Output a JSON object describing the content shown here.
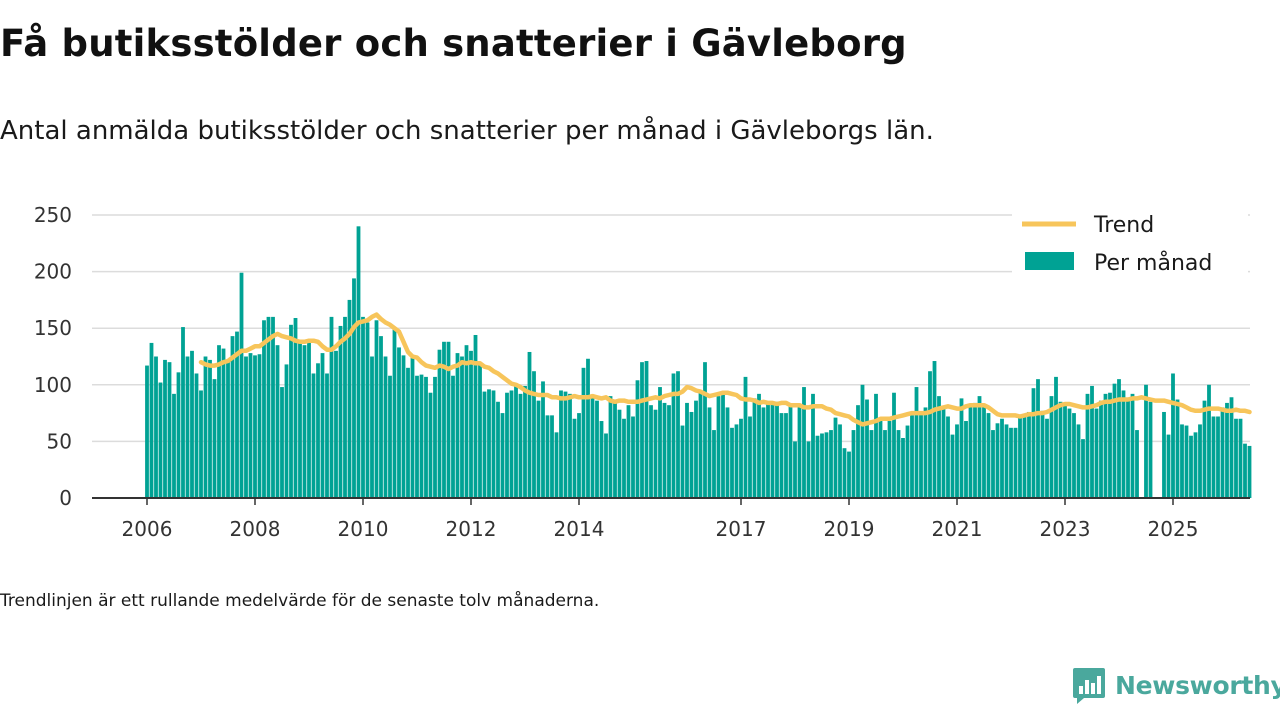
{
  "title": "Få butiksstölder och snatterier i Gävleborg",
  "subtitle": "Antal anmälda butiksstölder och snatterier per månad i Gävleborgs län.",
  "note": "Trendlinjen är ett rullande medelvärde för de senaste tolv månaderna.",
  "brand": {
    "name": "Newsworthy",
    "icon": "newsworthy-logo-icon"
  },
  "colors": {
    "bars": "#00a294",
    "trend": "#f7c55b",
    "grid": "#dcdcdc",
    "axis": "#333333",
    "brand": "#4aa89d"
  },
  "chart_data": {
    "type": "bar",
    "xaxis_tick_labels": [
      "2006",
      "2008",
      "2010",
      "2012",
      "2014",
      "2017",
      "2019",
      "2021",
      "2023",
      "2025"
    ],
    "yaxis_tick_labels": [
      "0",
      "50",
      "100",
      "150",
      "200",
      "250"
    ],
    "ylim": [
      0,
      250
    ],
    "grid": true,
    "legend_position": "top-right",
    "start_month": "2006-01",
    "series": [
      {
        "name": "Per månad",
        "type": "bar",
        "values": [
          117,
          137,
          125,
          102,
          122,
          120,
          92,
          111,
          151,
          125,
          130,
          110,
          95,
          125,
          122,
          105,
          135,
          132,
          122,
          143,
          147,
          199,
          125,
          128,
          126,
          127,
          157,
          160,
          160,
          135,
          98,
          118,
          153,
          159,
          140,
          135,
          138,
          110,
          119,
          128,
          110,
          160,
          130,
          152,
          160,
          175,
          194,
          240,
          160,
          155,
          125,
          157,
          143,
          125,
          108,
          150,
          133,
          126,
          115,
          124,
          108,
          109,
          107,
          93,
          107,
          131,
          138,
          138,
          108,
          128,
          125,
          135,
          130,
          144,
          118,
          94,
          96,
          95,
          85,
          75,
          93,
          95,
          101,
          92,
          99,
          129,
          112,
          86,
          103,
          73,
          73,
          58,
          95,
          94,
          92,
          70,
          75,
          115,
          123,
          88,
          86,
          68,
          57,
          90,
          84,
          78,
          70,
          82,
          72,
          104,
          120,
          121,
          82,
          78,
          98,
          84,
          82,
          110,
          112,
          64,
          84,
          76,
          86,
          94,
          120,
          80,
          60,
          90,
          92,
          80,
          62,
          65,
          70,
          107,
          72,
          88,
          92,
          80,
          84,
          85,
          85,
          75,
          75,
          82,
          50,
          80,
          98,
          50,
          92,
          55,
          57,
          58,
          60,
          71,
          65,
          44,
          41,
          60,
          82,
          100,
          87,
          60,
          92,
          70,
          60,
          68,
          93,
          60,
          53,
          64,
          73,
          98,
          76,
          80,
          112,
          121,
          90,
          80,
          72,
          56,
          65,
          88,
          68,
          80,
          84,
          90,
          80,
          75,
          60,
          66,
          70,
          65,
          62,
          62,
          71,
          73,
          76,
          97,
          105,
          77,
          70,
          90,
          107,
          85,
          82,
          79,
          75,
          65,
          52,
          92,
          99,
          79,
          86,
          92,
          93,
          101,
          105,
          95,
          88,
          92,
          60,
          0,
          100,
          85,
          0,
          0,
          76,
          56,
          110,
          87,
          65,
          64,
          55,
          58,
          65,
          86,
          100,
          72,
          72,
          80,
          84,
          89,
          70,
          70,
          48,
          46
        ]
      },
      {
        "name": "Trend",
        "type": "line",
        "values": [
          null,
          null,
          null,
          null,
          null,
          null,
          null,
          null,
          null,
          null,
          null,
          null,
          120,
          118,
          117,
          117,
          118,
          120,
          121,
          124,
          127,
          130,
          130,
          132,
          134,
          134,
          137,
          140,
          143,
          145,
          143,
          142,
          141,
          139,
          138,
          138,
          139,
          139,
          138,
          134,
          131,
          131,
          134,
          138,
          141,
          145,
          151,
          155,
          156,
          157,
          160,
          162,
          158,
          155,
          153,
          150,
          147,
          138,
          129,
          125,
          124,
          120,
          117,
          116,
          115,
          117,
          116,
          114,
          116,
          117,
          120,
          119,
          120,
          119,
          119,
          116,
          115,
          112,
          110,
          107,
          104,
          101,
          100,
          98,
          95,
          93,
          92,
          91,
          91,
          91,
          89,
          89,
          88,
          88,
          89,
          90,
          89,
          89,
          89,
          90,
          89,
          88,
          89,
          86,
          85,
          86,
          86,
          85,
          85,
          85,
          86,
          87,
          88,
          89,
          88,
          90,
          91,
          92,
          92,
          94,
          98,
          97,
          95,
          94,
          92,
          90,
          91,
          92,
          93,
          93,
          92,
          91,
          88,
          87,
          87,
          86,
          84,
          85,
          84,
          84,
          83,
          84,
          84,
          82,
          82,
          82,
          80,
          80,
          81,
          81,
          81,
          79,
          78,
          75,
          74,
          73,
          72,
          69,
          67,
          65,
          66,
          67,
          68,
          70,
          70,
          70,
          71,
          72,
          73,
          74,
          75,
          75,
          75,
          75,
          76,
          78,
          79,
          80,
          81,
          80,
          79,
          79,
          81,
          82,
          82,
          82,
          82,
          80,
          77,
          74,
          73,
          73,
          73,
          73,
          72,
          73,
          74,
          74,
          75,
          75,
          76,
          78,
          80,
          82,
          83,
          83,
          82,
          81,
          80,
          80,
          81,
          82,
          84,
          85,
          85,
          86,
          87,
          87,
          87,
          88,
          88,
          89,
          88,
          87,
          86,
          86,
          86,
          85,
          84,
          83,
          82,
          80,
          78,
          77,
          77,
          78,
          79,
          79,
          79,
          78,
          77,
          77,
          78,
          77,
          77,
          76
        ]
      }
    ]
  }
}
